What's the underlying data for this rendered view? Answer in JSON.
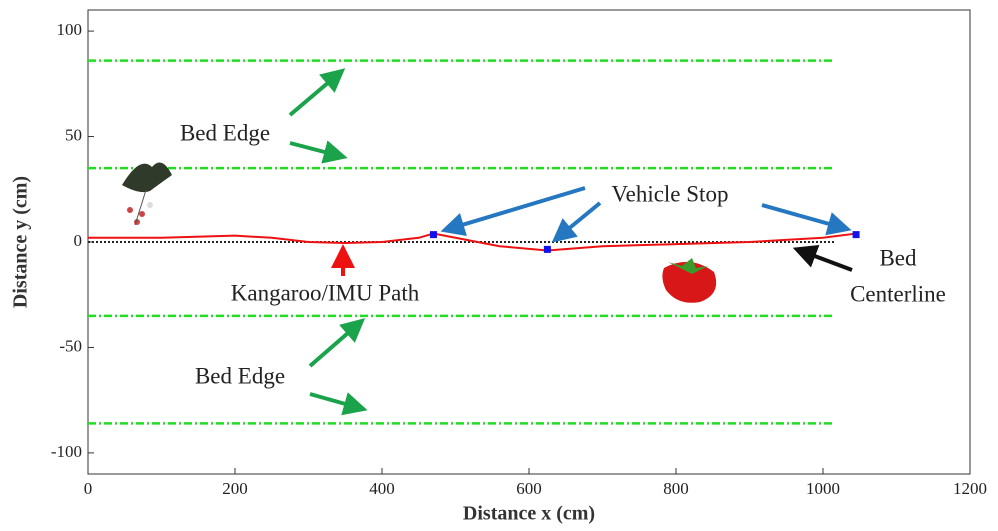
{
  "chart_data": {
    "type": "line",
    "x_label": "Distance x (cm)",
    "y_label": "Distance y (cm)",
    "xlim": [
      0,
      1200
    ],
    "ylim": [
      -110,
      110
    ],
    "xticks": [
      0,
      200,
      400,
      600,
      800,
      1000,
      1200
    ],
    "yticks": [
      -100,
      -50,
      0,
      50,
      100
    ],
    "bed_edges": [
      86,
      35,
      -35,
      -86
    ],
    "bed_edge_color": "#22dd22",
    "guide_x": [
      0,
      1015
    ],
    "centerline": 0,
    "centerline_color": "#222222",
    "path": {
      "x": [
        0,
        100,
        200,
        250,
        300,
        350,
        400,
        450,
        470,
        500,
        560,
        625,
        700,
        800,
        900,
        1000,
        1045
      ],
      "y": [
        2,
        2,
        3,
        2,
        0,
        -0.5,
        0,
        2,
        4,
        2,
        -2,
        -4,
        -2,
        -1,
        0,
        2,
        4
      ],
      "color": "#ee1111"
    },
    "stops": {
      "x": [
        470,
        625,
        1045
      ],
      "y": [
        3.5,
        -3.5,
        3.5
      ],
      "color": "#1111ee"
    },
    "annotations": {
      "bed_edge_top": "Bed Edge",
      "bed_edge_bottom": "Bed Edge",
      "vehicle_stop": "Vehicle Stop",
      "path": "Kangaroo/IMU Path",
      "centerline": [
        "Bed",
        "Centerline"
      ]
    }
  }
}
